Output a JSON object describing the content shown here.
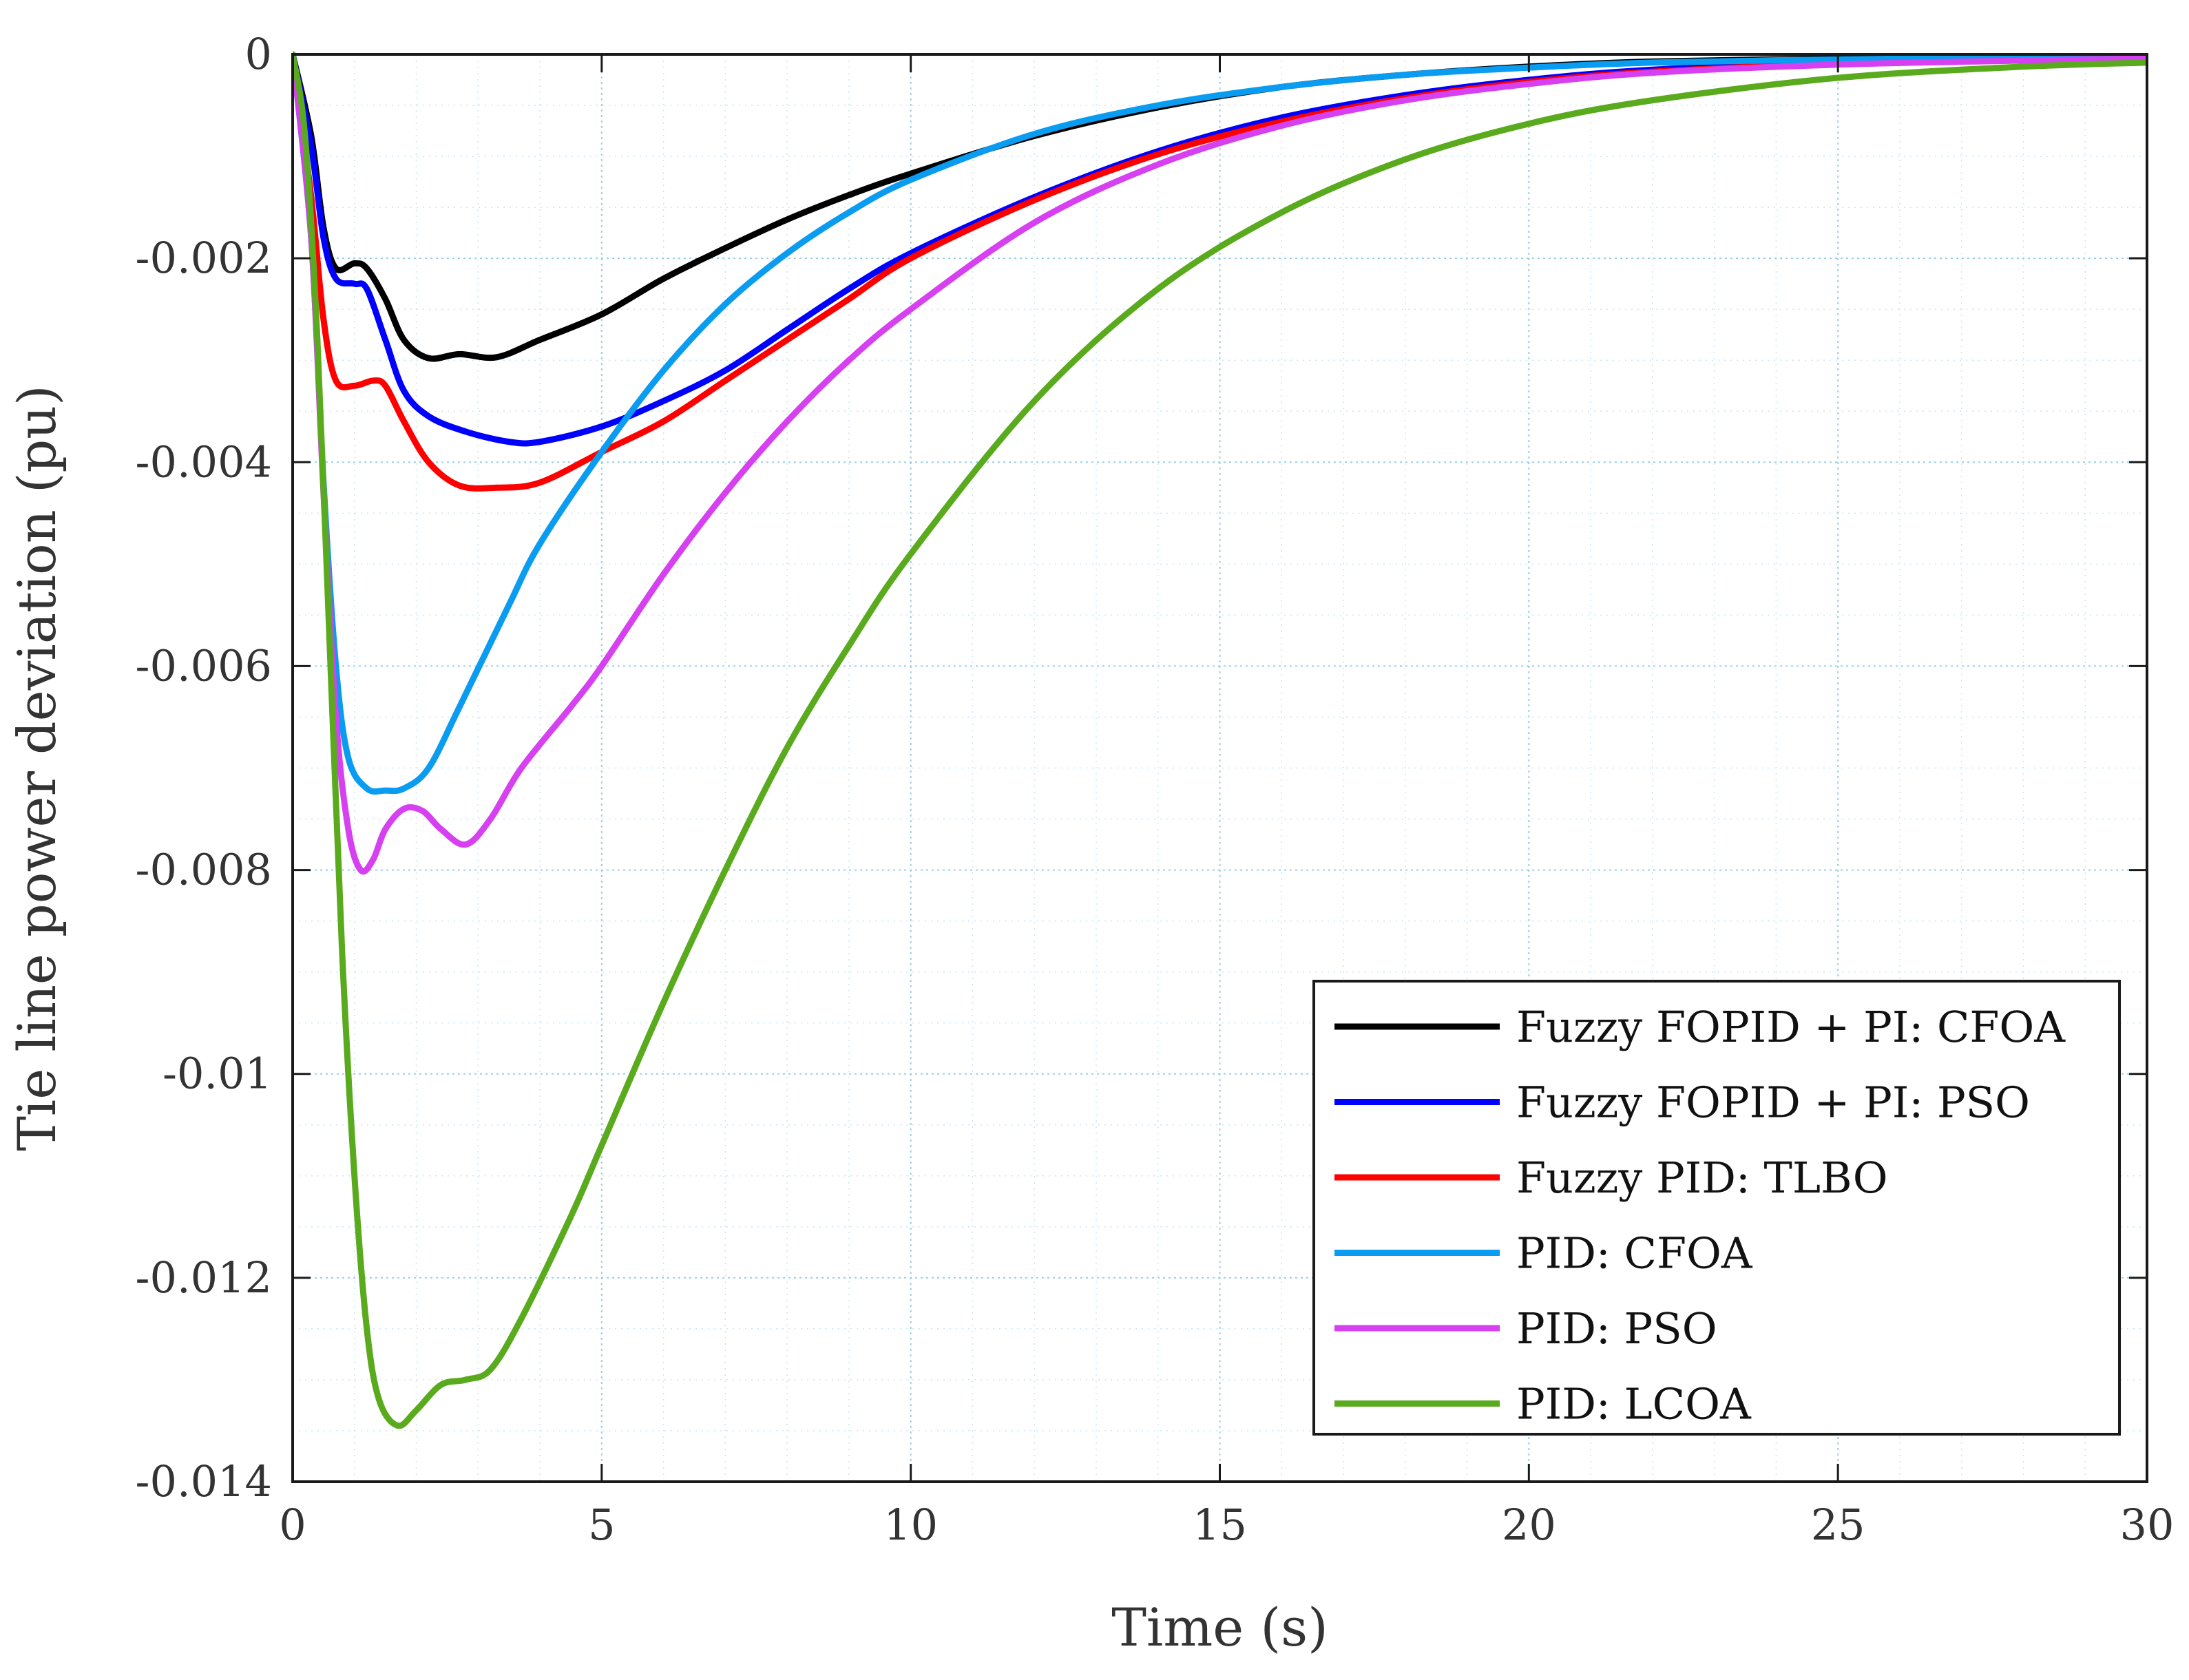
{
  "chart_data": {
    "type": "line",
    "title": "",
    "xlabel": "Time (s)",
    "ylabel": "Tie line power deviation  (pu)",
    "xlim": [
      0,
      30
    ],
    "ylim": [
      -0.014,
      0
    ],
    "grid": true,
    "legend_position": "bottom-right",
    "xticks": [
      0,
      5,
      10,
      15,
      20,
      25,
      30
    ],
    "xtick_labels": [
      "0",
      "5",
      "10",
      "15",
      "20",
      "25",
      "30"
    ],
    "yticks": [
      0,
      -0.002,
      -0.004,
      -0.006,
      -0.008,
      -0.01,
      -0.012,
      -0.014
    ],
    "ytick_labels": [
      "0",
      "-0.002",
      "-0.004",
      "-0.006",
      "-0.008",
      "-0.01",
      "-0.012",
      "-0.014"
    ],
    "series": [
      {
        "name": "Fuzzy FOPID + PI: CFOA",
        "color": "#000000",
        "points": [
          [
            0,
            0
          ],
          [
            0.3,
            -0.0008
          ],
          [
            0.5,
            -0.0017
          ],
          [
            0.7,
            -0.0021
          ],
          [
            1.0,
            -0.00205
          ],
          [
            1.2,
            -0.0021
          ],
          [
            1.5,
            -0.0024
          ],
          [
            1.8,
            -0.0028
          ],
          [
            2.2,
            -0.00298
          ],
          [
            2.7,
            -0.00294
          ],
          [
            3.3,
            -0.00297
          ],
          [
            4,
            -0.0028
          ],
          [
            5,
            -0.00255
          ],
          [
            6,
            -0.0022
          ],
          [
            7,
            -0.0019
          ],
          [
            8,
            -0.00162
          ],
          [
            9,
            -0.00138
          ],
          [
            10,
            -0.00117
          ],
          [
            12,
            -0.0008
          ],
          [
            14,
            -0.00052
          ],
          [
            16,
            -0.00032
          ],
          [
            18,
            -0.0002
          ],
          [
            20,
            -0.00012
          ],
          [
            22,
            -7e-05
          ],
          [
            25,
            -4e-05
          ],
          [
            28,
            -3e-05
          ],
          [
            30,
            -2e-05
          ]
        ]
      },
      {
        "name": "Fuzzy FOPID + PI: PSO",
        "color": "#0000ff",
        "points": [
          [
            0,
            0
          ],
          [
            0.3,
            -0.0009
          ],
          [
            0.5,
            -0.0018
          ],
          [
            0.7,
            -0.0022
          ],
          [
            1.0,
            -0.00225
          ],
          [
            1.2,
            -0.0023
          ],
          [
            1.5,
            -0.0028
          ],
          [
            1.8,
            -0.0033
          ],
          [
            2.2,
            -0.00355
          ],
          [
            2.8,
            -0.0037
          ],
          [
            3.5,
            -0.0038
          ],
          [
            4,
            -0.0038
          ],
          [
            5,
            -0.00365
          ],
          [
            6,
            -0.0034
          ],
          [
            7,
            -0.0031
          ],
          [
            8,
            -0.0027
          ],
          [
            9,
            -0.0023
          ],
          [
            10,
            -0.00195
          ],
          [
            12,
            -0.0014
          ],
          [
            14,
            -0.00095
          ],
          [
            16,
            -0.00062
          ],
          [
            18,
            -0.0004
          ],
          [
            20,
            -0.00025
          ],
          [
            22,
            -0.00015
          ],
          [
            25,
            -8e-05
          ],
          [
            28,
            -4e-05
          ],
          [
            30,
            -3e-05
          ]
        ]
      },
      {
        "name": "Fuzzy PID: TLBO",
        "color": "#ff0000",
        "points": [
          [
            0,
            0
          ],
          [
            0.3,
            -0.0014
          ],
          [
            0.5,
            -0.0026
          ],
          [
            0.7,
            -0.0032
          ],
          [
            1.0,
            -0.00325
          ],
          [
            1.3,
            -0.0032
          ],
          [
            1.5,
            -0.00325
          ],
          [
            1.8,
            -0.0036
          ],
          [
            2.2,
            -0.004
          ],
          [
            2.7,
            -0.00423
          ],
          [
            3.3,
            -0.00425
          ],
          [
            4,
            -0.0042
          ],
          [
            5,
            -0.0039
          ],
          [
            6,
            -0.0036
          ],
          [
            7,
            -0.0032
          ],
          [
            8,
            -0.0028
          ],
          [
            9,
            -0.0024
          ],
          [
            10,
            -0.002
          ],
          [
            12,
            -0.00143
          ],
          [
            14,
            -0.00098
          ],
          [
            16,
            -0.00066
          ],
          [
            18,
            -0.00043
          ],
          [
            20,
            -0.00027
          ],
          [
            22,
            -0.00017
          ],
          [
            25,
            -9e-05
          ],
          [
            28,
            -5e-05
          ],
          [
            30,
            -3e-05
          ]
        ]
      },
      {
        "name": "PID: CFOA",
        "color": "#0a9cf0",
        "points": [
          [
            0,
            0
          ],
          [
            0.3,
            -0.0018
          ],
          [
            0.5,
            -0.0042
          ],
          [
            0.7,
            -0.006
          ],
          [
            0.9,
            -0.0069
          ],
          [
            1.2,
            -0.0072
          ],
          [
            1.5,
            -0.00722
          ],
          [
            1.8,
            -0.0072
          ],
          [
            2.2,
            -0.007
          ],
          [
            2.7,
            -0.0064
          ],
          [
            3.5,
            -0.0054
          ],
          [
            4,
            -0.0048
          ],
          [
            5,
            -0.0039
          ],
          [
            6,
            -0.0031
          ],
          [
            7,
            -0.00245
          ],
          [
            8,
            -0.00195
          ],
          [
            9,
            -0.00155
          ],
          [
            10,
            -0.00123
          ],
          [
            12,
            -0.00078
          ],
          [
            14,
            -0.0005
          ],
          [
            16,
            -0.00032
          ],
          [
            18,
            -0.0002
          ],
          [
            20,
            -0.00013
          ],
          [
            22,
            -8e-05
          ],
          [
            25,
            -5e-05
          ],
          [
            28,
            -3e-05
          ],
          [
            30,
            -2e-05
          ]
        ]
      },
      {
        "name": "PID: PSO",
        "color": "#d640f0",
        "points": [
          [
            0,
            0
          ],
          [
            0.3,
            -0.0018
          ],
          [
            0.5,
            -0.0043
          ],
          [
            0.7,
            -0.0065
          ],
          [
            0.9,
            -0.0076
          ],
          [
            1.1,
            -0.008
          ],
          [
            1.3,
            -0.0079
          ],
          [
            1.5,
            -0.0076
          ],
          [
            1.8,
            -0.0074
          ],
          [
            2.1,
            -0.00742
          ],
          [
            2.4,
            -0.0076
          ],
          [
            2.8,
            -0.00775
          ],
          [
            3.2,
            -0.0075
          ],
          [
            3.7,
            -0.007
          ],
          [
            4.5,
            -0.0064
          ],
          [
            5,
            -0.006
          ],
          [
            6,
            -0.0051
          ],
          [
            7,
            -0.0043
          ],
          [
            8,
            -0.0036
          ],
          [
            9,
            -0.003
          ],
          [
            10,
            -0.0025
          ],
          [
            12,
            -0.00165
          ],
          [
            14,
            -0.00108
          ],
          [
            16,
            -0.0007
          ],
          [
            18,
            -0.00045
          ],
          [
            20,
            -0.00029
          ],
          [
            22,
            -0.00018
          ],
          [
            25,
            -0.0001
          ],
          [
            28,
            -6e-05
          ],
          [
            30,
            -4e-05
          ]
        ]
      },
      {
        "name": "PID: LCOA",
        "color": "#5aaa1e",
        "points": [
          [
            0,
            0
          ],
          [
            0.2,
            -0.0008
          ],
          [
            0.4,
            -0.0028
          ],
          [
            0.6,
            -0.0058
          ],
          [
            0.8,
            -0.0088
          ],
          [
            1.0,
            -0.011
          ],
          [
            1.2,
            -0.0125
          ],
          [
            1.4,
            -0.0132
          ],
          [
            1.7,
            -0.01345
          ],
          [
            2.0,
            -0.0133
          ],
          [
            2.4,
            -0.01305
          ],
          [
            2.8,
            -0.013
          ],
          [
            3.2,
            -0.0129
          ],
          [
            3.7,
            -0.0124
          ],
          [
            4.5,
            -0.0114
          ],
          [
            5,
            -0.0107
          ],
          [
            6,
            -0.0093
          ],
          [
            7,
            -0.008
          ],
          [
            8,
            -0.0068
          ],
          [
            9,
            -0.0058
          ],
          [
            10,
            -0.0049
          ],
          [
            12,
            -0.0034
          ],
          [
            14,
            -0.0023
          ],
          [
            16,
            -0.00155
          ],
          [
            18,
            -0.00103
          ],
          [
            20,
            -0.00068
          ],
          [
            22,
            -0.00045
          ],
          [
            25,
            -0.00023
          ],
          [
            28,
            -0.00012
          ],
          [
            30,
            -8e-05
          ]
        ]
      }
    ]
  }
}
